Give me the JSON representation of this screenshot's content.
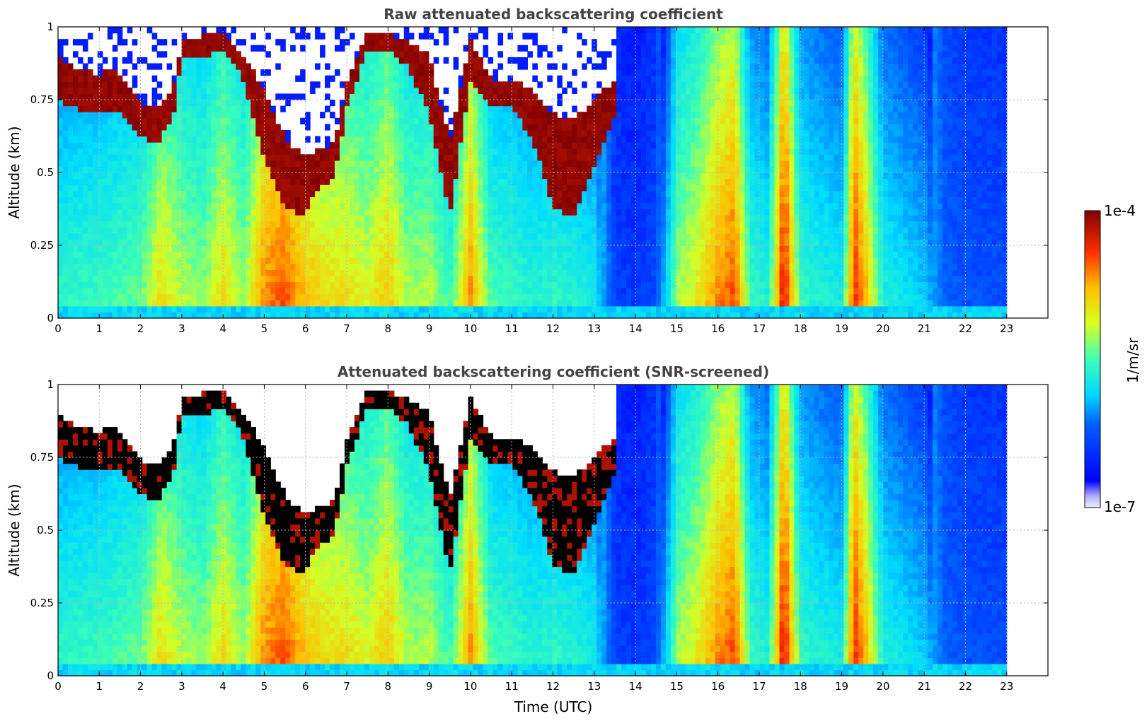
{
  "chart_data": [
    {
      "type": "heatmap",
      "title": "Raw attenuated backscattering coefficient",
      "xlabel": "",
      "ylabel": "Altitude (km)",
      "xlim": [
        0,
        24
      ],
      "ylim": [
        0,
        1
      ],
      "xticks": [
        "0",
        "1",
        "2",
        "3",
        "4",
        "5",
        "6",
        "7",
        "8",
        "9",
        "10",
        "11",
        "12",
        "13",
        "14",
        "15",
        "16",
        "17",
        "18",
        "19",
        "20",
        "21",
        "22",
        "23"
      ],
      "yticks": [
        "0",
        "0.25",
        "0.5",
        "0.75",
        "1"
      ],
      "grid": true,
      "data_end_time": 23,
      "screened": false
    },
    {
      "type": "heatmap",
      "title": "Attenuated backscattering coefficient (SNR-screened)",
      "xlabel": "Time (UTC)",
      "ylabel": "Altitude (km)",
      "xlim": [
        0,
        24
      ],
      "ylim": [
        0,
        1
      ],
      "xticks": [
        "0",
        "1",
        "2",
        "3",
        "4",
        "5",
        "6",
        "7",
        "8",
        "9",
        "10",
        "11",
        "12",
        "13",
        "14",
        "15",
        "16",
        "17",
        "18",
        "19",
        "20",
        "21",
        "22",
        "23"
      ],
      "yticks": [
        "0",
        "0.25",
        "0.5",
        "0.75",
        "1"
      ],
      "grid": true,
      "data_end_time": 23,
      "screened": true
    }
  ],
  "colorbar": {
    "max_label": "1e-4",
    "min_label": "1e-7",
    "unit_label": "1/m/sr",
    "colormap": "jet",
    "scale": "log"
  },
  "cloud_layer_profile": {
    "time": [
      0,
      0.5,
      1,
      1.3,
      1.6,
      2,
      2.4,
      2.8,
      3,
      3.5,
      4,
      4.5,
      5,
      5.5,
      6,
      6.3,
      6.7,
      7,
      7.5,
      8,
      8.5,
      9,
      9.5,
      10,
      10.5,
      11,
      11.5,
      12,
      12.5,
      13,
      13.5
    ],
    "top_km": [
      0.9,
      0.85,
      0.84,
      0.86,
      0.82,
      0.74,
      0.72,
      0.8,
      0.95,
      0.97,
      0.98,
      0.9,
      0.78,
      0.62,
      0.55,
      0.58,
      0.6,
      0.82,
      0.98,
      0.98,
      0.95,
      0.9,
      0.6,
      0.95,
      0.82,
      0.82,
      0.78,
      0.7,
      0.68,
      0.75,
      0.82
    ],
    "bottom_km": [
      0.75,
      0.72,
      0.7,
      0.72,
      0.7,
      0.62,
      0.6,
      0.7,
      0.9,
      0.9,
      0.92,
      0.82,
      0.55,
      0.38,
      0.35,
      0.45,
      0.48,
      0.72,
      0.92,
      0.92,
      0.86,
      0.7,
      0.35,
      0.82,
      0.72,
      0.72,
      0.62,
      0.38,
      0.34,
      0.52,
      0.7
    ]
  }
}
